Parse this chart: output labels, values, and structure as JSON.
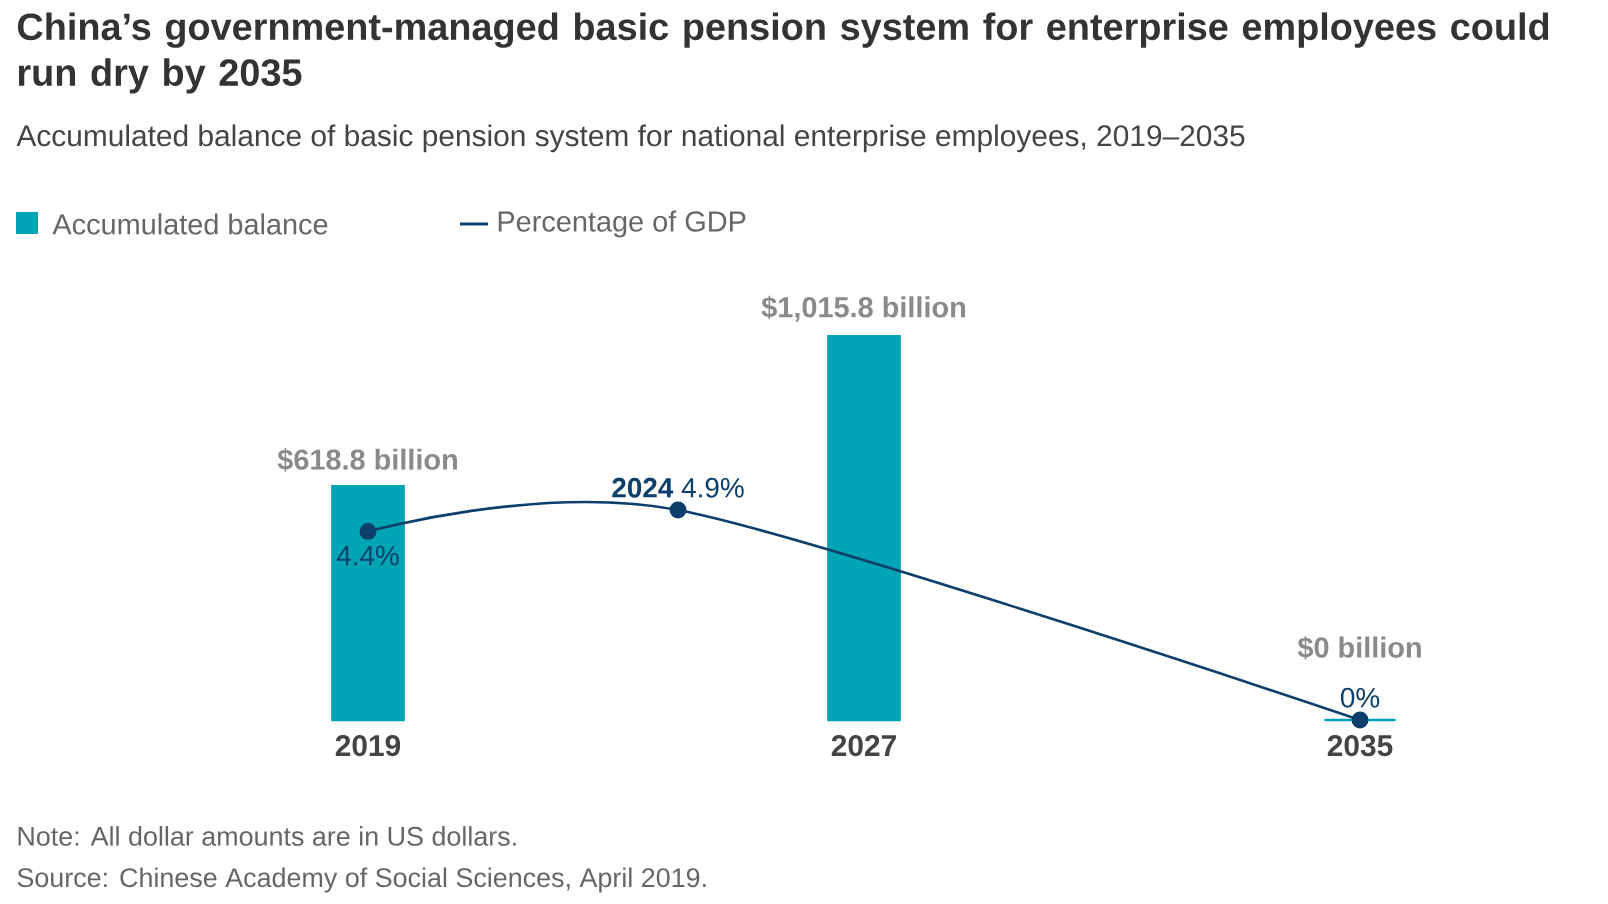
{
  "chart_data": {
    "type": "bar",
    "title": "China’s government-managed basic pension system for enterprise employees could run dry by 2035",
    "subtitle": "Accumulated balance of basic pension system for national enterprise employees, 2019–2035",
    "x": [
      2019,
      2027,
      2035
    ],
    "xlim": [
      2019,
      2035
    ],
    "xticks": [
      2019,
      2027,
      2035
    ],
    "tick_labels": "x",
    "legend": "top left",
    "series": [
      {
        "name": "Accumulated balance",
        "color": "#00a5b5",
        "values": [
          618.8,
          1015.8,
          0
        ],
        "value_labels": [
          "$618.8 billion",
          "$1,015.8 billion",
          "$0 billion"
        ]
      },
      {
        "name": "Percentage of GDP",
        "type": "line",
        "axis": "y2",
        "marker": "circle",
        "color": "#0d3f6b",
        "x": [
          2019,
          2024,
          2035
        ],
        "values": [
          4.4,
          4.9,
          0
        ],
        "value_labels": [
          "4.4%",
          "**2024** 4.9%",
          "0%"
        ]
      }
    ],
    "annotations": [
      "Note: All dollar amounts are in US dollars.",
      "Source: Chinese Academy of Social Sciences, April 2019."
    ]
  }
}
